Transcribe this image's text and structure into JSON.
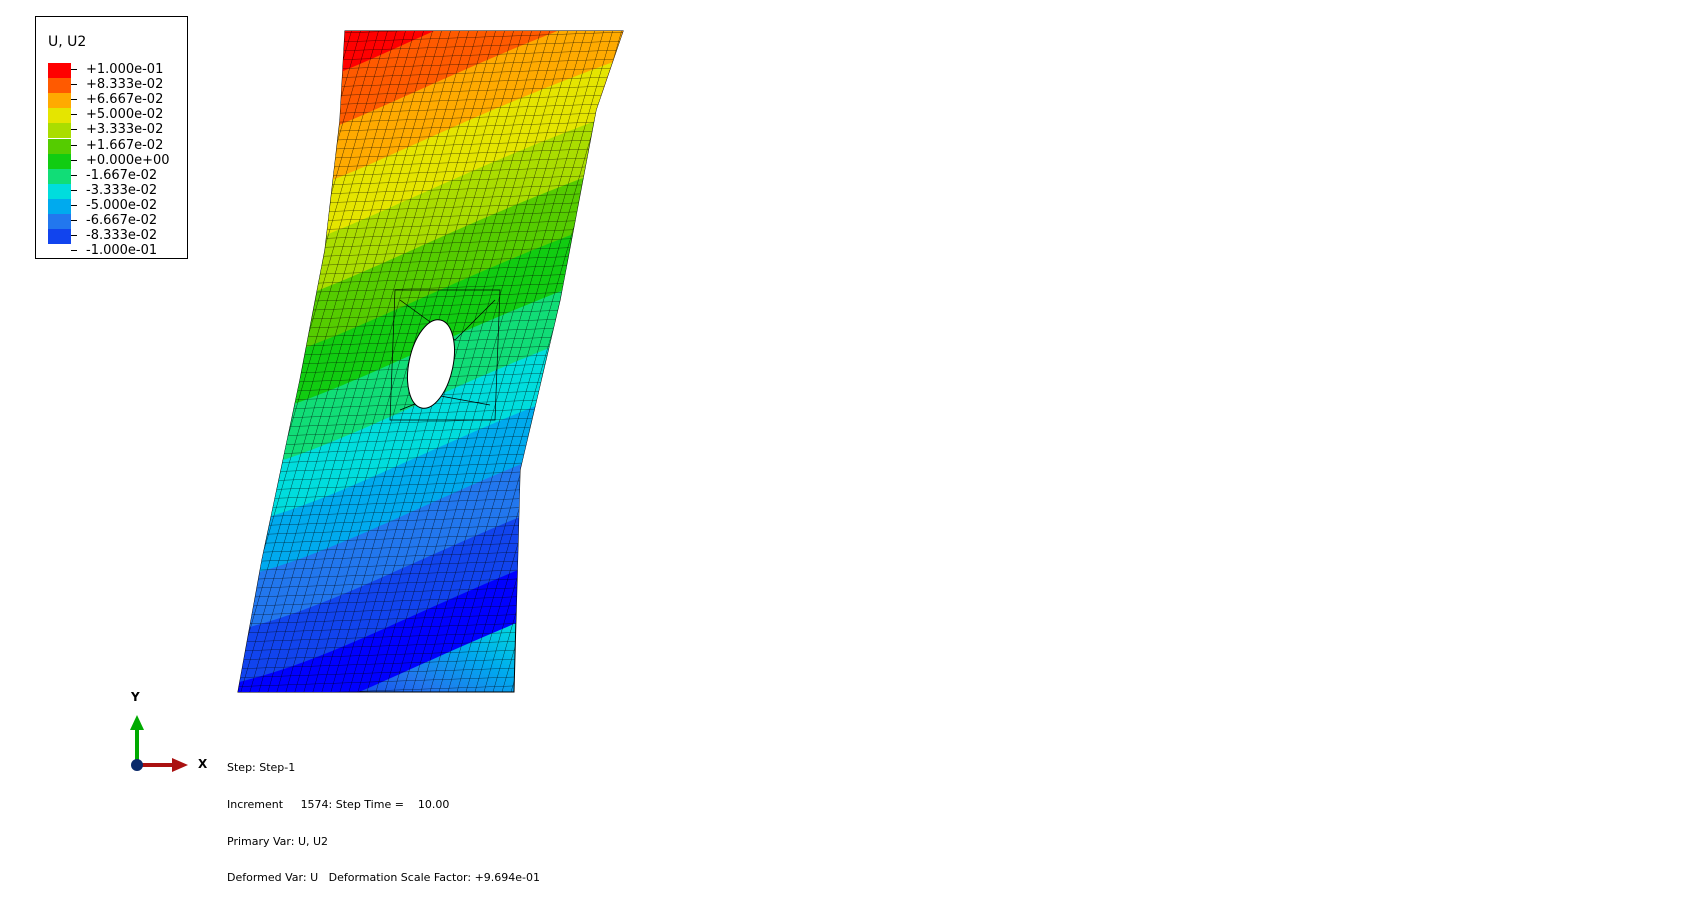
{
  "legend": {
    "title": "U, U2",
    "labels": [
      "+1.000e-01",
      "+8.333e-02",
      "+6.667e-02",
      "+5.000e-02",
      "+3.333e-02",
      "+1.667e-02",
      "+0.000e+00",
      "-1.667e-02",
      "-3.333e-02",
      "-5.000e-02",
      "-6.667e-02",
      "-8.333e-02",
      "-1.000e-01"
    ],
    "colors": [
      "#ff0000",
      "#ff5a00",
      "#ffaa00",
      "#e5e500",
      "#aadd00",
      "#55cc00",
      "#11cc11",
      "#11dd77",
      "#00dddd",
      "#00aaee",
      "#2277ee",
      "#1144ee",
      "#0000ff"
    ]
  },
  "triad": {
    "x_label": "X",
    "y_label": "Y"
  },
  "info": {
    "step": "Step: Step-1",
    "increment": "Increment     1574: Step Time =    10.00",
    "primary_var": "Primary Var: U, U2",
    "deformed_var": "Deformed Var: U   Deformation Scale Factor: +9.694e-01"
  },
  "contour": {
    "min": -0.1,
    "max": 0.1
  }
}
